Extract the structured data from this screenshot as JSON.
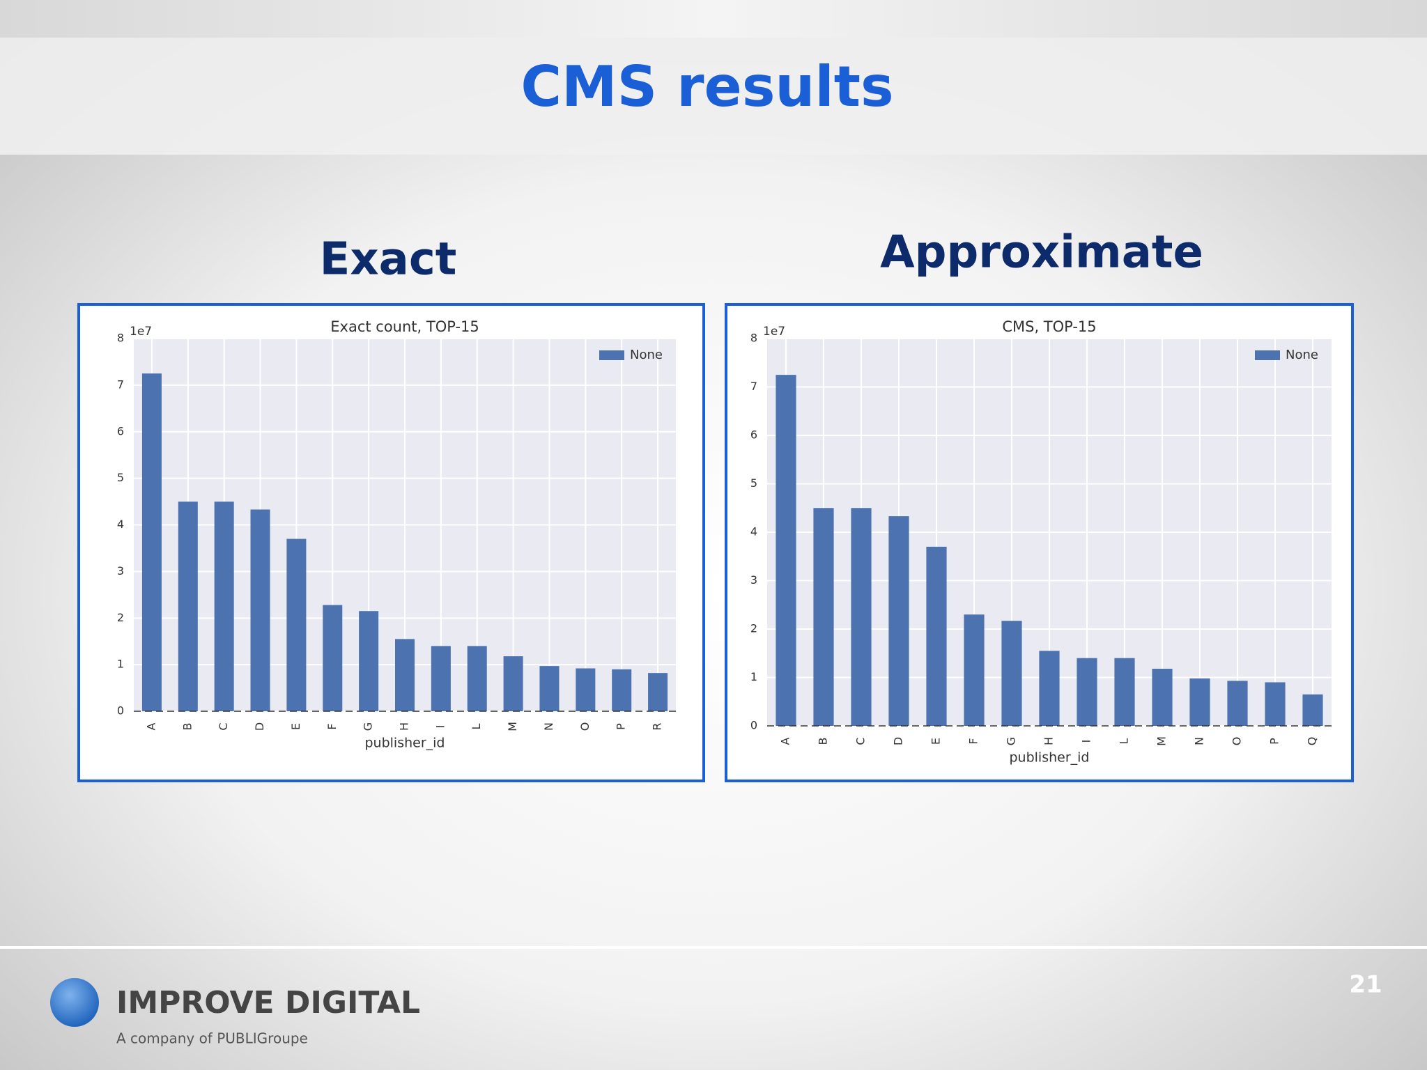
{
  "slide": {
    "title": "CMS results",
    "headings": [
      "Exact",
      "Approximate"
    ]
  },
  "chart_data": [
    {
      "type": "bar",
      "title": "Exact count, TOP-15",
      "x_label": "publisher_id",
      "y_offset_label": "1e7",
      "categories": [
        "A",
        "B",
        "C",
        "D",
        "E",
        "F",
        "G",
        "H",
        "I",
        "L",
        "M",
        "N",
        "O",
        "P",
        "R"
      ],
      "series": [
        {
          "name": "None",
          "color": "#4c72b0",
          "values": [
            7.25,
            4.5,
            4.5,
            4.33,
            3.7,
            2.28,
            2.15,
            1.55,
            1.4,
            1.4,
            1.18,
            0.97,
            0.92,
            0.9,
            0.82
          ]
        }
      ],
      "ylim": [
        0,
        8
      ],
      "yticks": [
        0,
        1,
        2,
        3,
        4,
        5,
        6,
        7,
        8
      ],
      "grid": true,
      "legend": "upper right"
    },
    {
      "type": "bar",
      "title": "CMS, TOP-15",
      "x_label": "publisher_id",
      "y_offset_label": "1e7",
      "categories": [
        "A",
        "B",
        "C",
        "D",
        "E",
        "F",
        "G",
        "H",
        "I",
        "L",
        "M",
        "N",
        "O",
        "P",
        "Q"
      ],
      "series": [
        {
          "name": "None",
          "color": "#4c72b0",
          "values": [
            7.25,
            4.5,
            4.5,
            4.33,
            3.7,
            2.3,
            2.17,
            1.55,
            1.4,
            1.4,
            1.18,
            0.98,
            0.93,
            0.9,
            0.65
          ]
        }
      ],
      "ylim": [
        0,
        8
      ],
      "yticks": [
        0,
        1,
        2,
        3,
        4,
        5,
        6,
        7,
        8
      ],
      "grid": true,
      "legend": "upper right"
    }
  ],
  "footer": {
    "brand": "IMPROVE DIGITAL",
    "tagline": "A company of PUBLIGroupe",
    "page_number": "21"
  }
}
